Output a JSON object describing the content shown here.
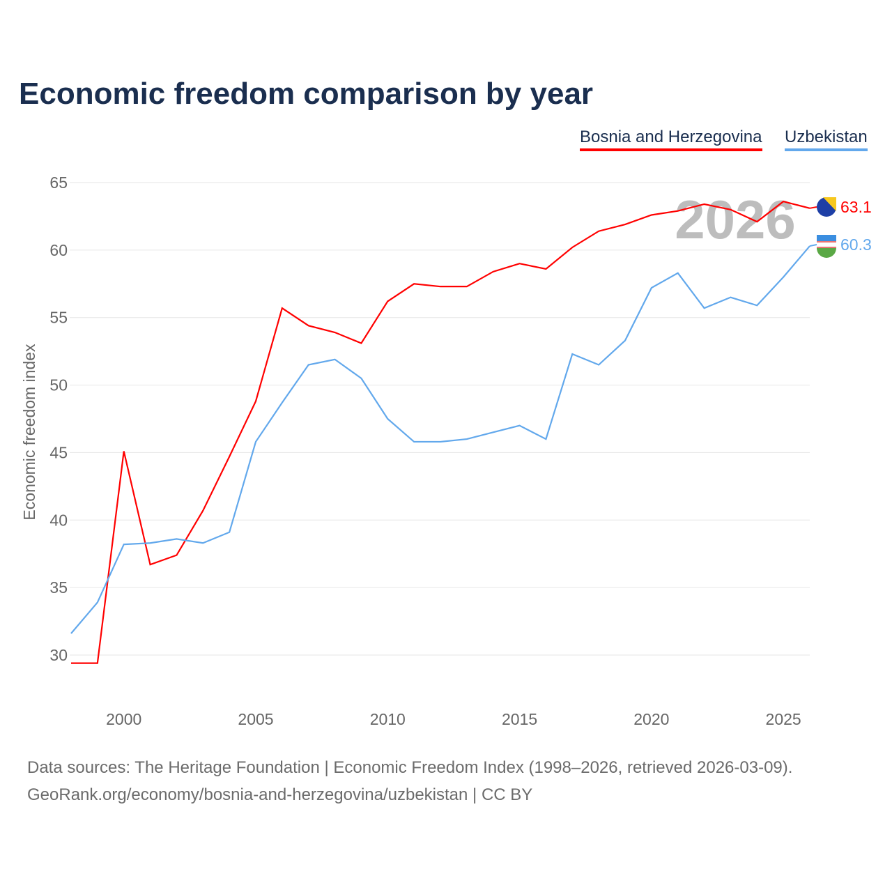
{
  "chart_data": {
    "type": "line",
    "title": "Economic freedom comparison by year",
    "xlabel": "",
    "ylabel": "Economic freedom index",
    "ylim": [
      27,
      66
    ],
    "xlim": [
      1998,
      2026
    ],
    "yticks": [
      30,
      35,
      40,
      45,
      50,
      55,
      60,
      65
    ],
    "xticks": [
      2000,
      2005,
      2010,
      2015,
      2020,
      2025
    ],
    "grid": true,
    "legend_placement": "top-right",
    "watermark_year": "2026",
    "x": [
      1998,
      1999,
      2000,
      2001,
      2002,
      2003,
      2004,
      2005,
      2006,
      2007,
      2008,
      2009,
      2010,
      2011,
      2012,
      2013,
      2014,
      2015,
      2016,
      2017,
      2018,
      2019,
      2020,
      2021,
      2022,
      2023,
      2024,
      2025,
      2026
    ],
    "series": [
      {
        "name": "Bosnia and Herzegovina",
        "color": "#ff0000",
        "end_label": "63.1",
        "values": [
          29.4,
          29.4,
          45.1,
          36.7,
          37.4,
          40.7,
          44.7,
          48.8,
          55.7,
          54.4,
          53.9,
          53.1,
          56.2,
          57.5,
          57.3,
          57.3,
          58.4,
          59.0,
          58.6,
          60.2,
          61.4,
          61.9,
          62.6,
          62.9,
          63.4,
          63.0,
          62.1,
          63.6,
          63.1
        ]
      },
      {
        "name": "Uzbekistan",
        "color": "#62a8ec",
        "end_label": "60.3",
        "values": [
          31.6,
          33.9,
          38.2,
          38.3,
          38.6,
          38.3,
          39.1,
          45.8,
          48.7,
          51.5,
          51.9,
          50.5,
          47.5,
          45.8,
          45.8,
          46.0,
          46.5,
          47.0,
          46.0,
          52.3,
          51.5,
          53.3,
          57.2,
          58.3,
          55.7,
          56.5,
          55.9,
          58.0,
          60.3
        ]
      }
    ]
  },
  "footer": {
    "line1": "Data sources: The Heritage Foundation | Economic Freedom Index (1998–2026, retrieved 2026-03-09).",
    "line2": "GeoRank.org/economy/bosnia-and-herzegovina/uzbekistan | CC BY"
  }
}
